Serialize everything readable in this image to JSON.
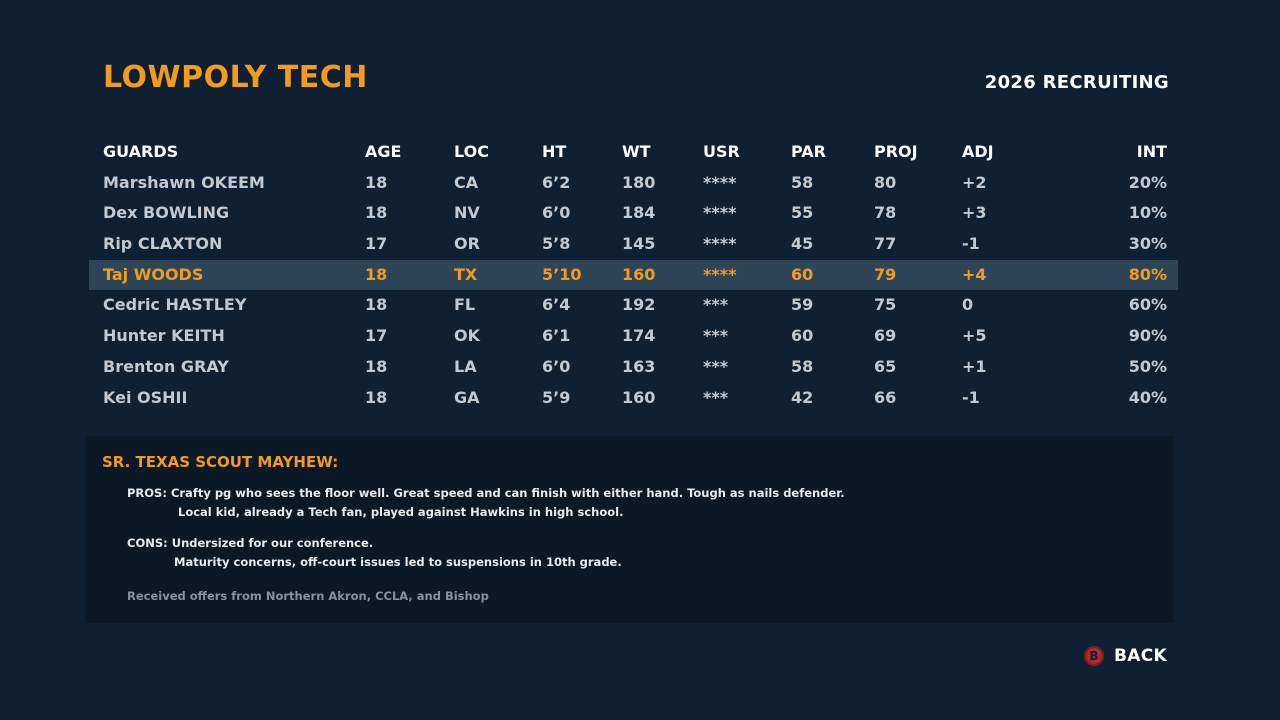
{
  "header": {
    "school": "LOWPOLY TECH",
    "season": "2026 RECRUITING"
  },
  "table": {
    "columns": {
      "name": "GUARDS",
      "age": "AGE",
      "loc": "LOC",
      "ht": "HT",
      "wt": "WT",
      "usr": "USR",
      "par": "PAR",
      "proj": "PROJ",
      "adj": "ADJ",
      "int": "INT"
    },
    "rows": [
      {
        "name": "Marshawn OKEEM",
        "age": "18",
        "loc": "CA",
        "ht": "6’2",
        "wt": "180",
        "usr": "****",
        "par": "58",
        "proj": "80",
        "adj": "+2",
        "int": "20%"
      },
      {
        "name": "Dex BOWLING",
        "age": "18",
        "loc": "NV",
        "ht": "6’0",
        "wt": "184",
        "usr": "****",
        "par": "55",
        "proj": "78",
        "adj": "+3",
        "int": "10%"
      },
      {
        "name": "Rip CLAXTON",
        "age": "17",
        "loc": "OR",
        "ht": "5’8",
        "wt": "145",
        "usr": "****",
        "par": "45",
        "proj": "77",
        "adj": "-1",
        "int": "30%"
      },
      {
        "name": "Taj WOODS",
        "age": "18",
        "loc": "TX",
        "ht": "5’10",
        "wt": "160",
        "usr": "****",
        "par": "60",
        "proj": "79",
        "adj": "+4",
        "int": "80%"
      },
      {
        "name": "Cedric HASTLEY",
        "age": "18",
        "loc": "FL",
        "ht": "6’4",
        "wt": "192",
        "usr": "***",
        "par": "59",
        "proj": "75",
        "adj": "0",
        "int": "60%"
      },
      {
        "name": "Hunter KEITH",
        "age": "17",
        "loc": "OK",
        "ht": "6’1",
        "wt": "174",
        "usr": "***",
        "par": "60",
        "proj": "69",
        "adj": "+5",
        "int": "90%"
      },
      {
        "name": "Brenton GRAY",
        "age": "18",
        "loc": "LA",
        "ht": "6’0",
        "wt": "163",
        "usr": "***",
        "par": "58",
        "proj": "65",
        "adj": "+1",
        "int": "50%"
      },
      {
        "name": "Kei OSHII",
        "age": "18",
        "loc": "GA",
        "ht": "5’9",
        "wt": "160",
        "usr": "***",
        "par": "42",
        "proj": "66",
        "adj": "-1",
        "int": "40%"
      }
    ]
  },
  "scout": {
    "title": "SR. TEXAS SCOUT MAYHEW:",
    "pros_line1": "PROS: Crafty pg who sees the floor well. Great speed and can finish with either hand. Tough as nails defender.",
    "pros_line2": "Local kid, already a Tech fan, played against Hawkins in high school.",
    "cons_line1": "CONS: Undersized for our conference.",
    "cons_line2": "Maturity concerns, off-court issues led to suspensions in 10th grade.",
    "offers": "Received offers from Northern Akron, CCLA, and Bishop"
  },
  "footer": {
    "back_button_glyph": "B",
    "back_label": "BACK"
  },
  "colors": {
    "background": "#0f2033",
    "accent": "#f29b1f",
    "selected_row": "#2d4556",
    "panel": "#0b1826",
    "b_button": "#b3282d"
  }
}
